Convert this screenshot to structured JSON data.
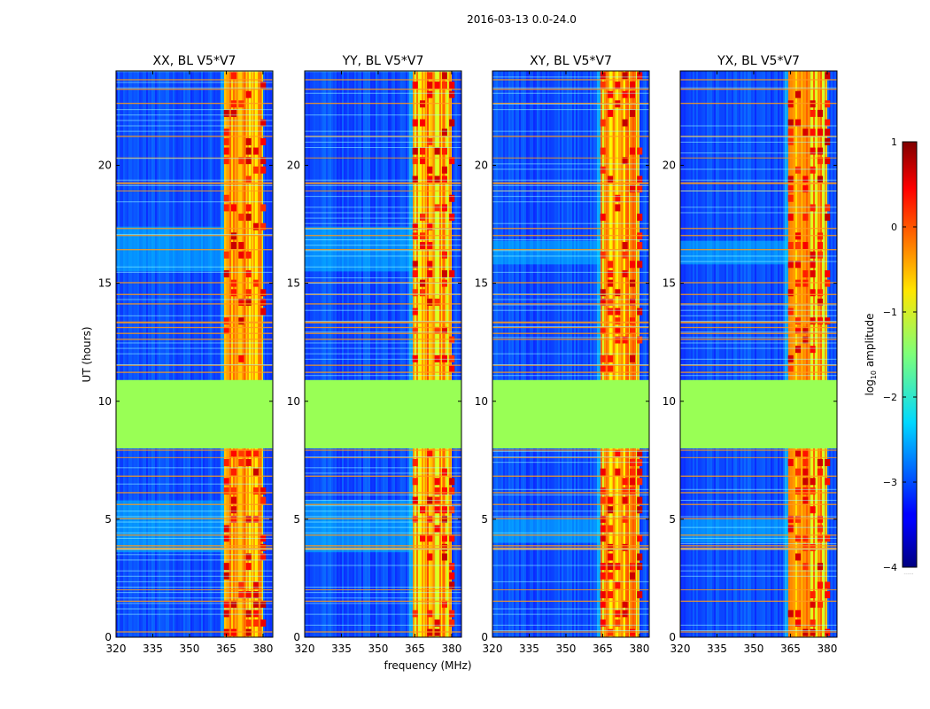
{
  "chart_data": {
    "type": "heatmap",
    "suptitle": "2016-03-13 0.0-24.0",
    "xlabel": "frequency (MHz)",
    "ylabel": "UT (hours)",
    "xlim": [
      320,
      384
    ],
    "ylim": [
      0,
      24
    ],
    "xticks": [
      320,
      335,
      350,
      365,
      380
    ],
    "yticks": [
      0,
      5,
      10,
      15,
      20
    ],
    "colorbar": {
      "label_main": "log",
      "label_sub": "10",
      "label_tail": " amplitude",
      "range": [
        -4,
        1
      ],
      "ticks": [
        1,
        0,
        -1,
        -2,
        -3,
        -4
      ],
      "colormap": "jet",
      "extra_label": "......"
    },
    "flagged_time_range": [
      8.0,
      10.9
    ],
    "flagged_fill": "#99ff55",
    "panels": [
      {
        "title": "XX, BL V5*V7",
        "band_a_hours": [
          3.6,
          5.8
        ],
        "band_b_hours": [
          15.5,
          17.4
        ]
      },
      {
        "title": "YY, BL V5*V7",
        "band_a_hours": [
          3.6,
          5.8
        ],
        "band_b_hours": [
          15.5,
          17.4
        ]
      },
      {
        "title": "XY, BL V5*V7",
        "band_a_hours": [
          4.0,
          5.0
        ],
        "band_b_hours": [
          15.8,
          16.8
        ]
      },
      {
        "title": "YX, BL V5*V7",
        "band_a_hours": [
          4.0,
          5.0
        ],
        "band_b_hours": [
          15.8,
          16.8
        ]
      }
    ],
    "rfi_band_MHz": [
      364,
      380
    ],
    "strong_rfi_hours": [
      [
        0.2,
        0.25
      ],
      [
        1.5,
        1.55
      ],
      [
        2.0,
        2.03
      ],
      [
        3.7,
        3.8
      ],
      [
        3.85,
        3.9
      ],
      [
        4.3,
        4.35
      ],
      [
        5.0,
        5.05
      ],
      [
        5.6,
        5.65
      ],
      [
        6.1,
        6.15
      ],
      [
        6.8,
        6.85
      ],
      [
        7.6,
        7.63
      ],
      [
        7.9,
        7.95
      ],
      [
        11.2,
        11.25
      ],
      [
        11.5,
        11.55
      ],
      [
        12.6,
        12.65
      ],
      [
        12.85,
        12.9
      ],
      [
        13.1,
        13.15
      ],
      [
        13.3,
        13.38
      ],
      [
        14.1,
        14.15
      ],
      [
        14.5,
        14.55
      ],
      [
        15.0,
        15.05
      ],
      [
        16.4,
        16.45
      ],
      [
        17.0,
        17.05
      ],
      [
        17.3,
        17.35
      ],
      [
        18.9,
        18.93
      ],
      [
        19.2,
        19.28
      ],
      [
        20.3,
        20.33
      ],
      [
        21.2,
        21.25
      ],
      [
        22.6,
        22.65
      ],
      [
        23.2,
        23.25
      ],
      [
        23.6,
        23.65
      ]
    ]
  }
}
